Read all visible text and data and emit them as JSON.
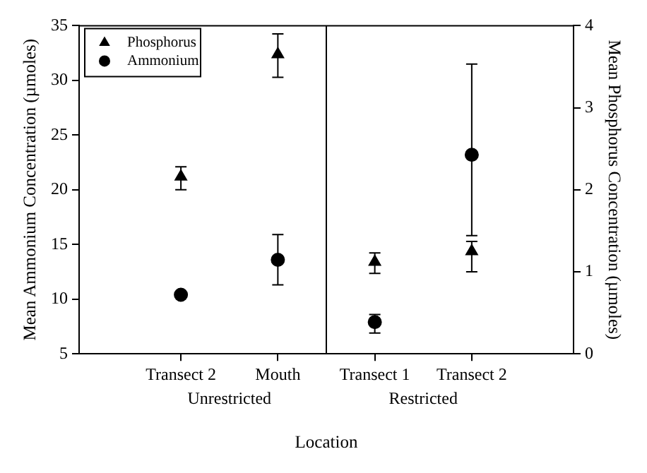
{
  "chart_data": {
    "type": "scatter",
    "categories": [
      "Transect 2",
      "Mouth",
      "Transect 1",
      "Transect 2"
    ],
    "xlabel": "Location",
    "ylabel": "Mean Ammonium Concentration (µmoles)",
    "y2label": "Mean Phosphorus Concentration (µmoles)",
    "annotations": [
      "Unrestricted",
      "Restricted"
    ],
    "series": [
      {
        "name": "Phosphorus",
        "color": "#000000",
        "marker": "triangle",
        "axis": "y2",
        "values": [
          2.16,
          3.65,
          1.12,
          1.25
        ],
        "errors": [
          [
            2.0,
            2.28
          ],
          [
            3.37,
            3.9
          ],
          [
            0.98,
            1.23
          ],
          [
            1.0,
            1.37
          ]
        ]
      },
      {
        "name": "Ammonium",
        "color": "#000000",
        "marker": "circle",
        "axis": "y",
        "values": [
          10.4,
          13.6,
          7.9,
          23.2
        ],
        "errors": [
          null,
          [
            11.3,
            15.9
          ],
          [
            6.9,
            8.6
          ],
          [
            15.8,
            31.5
          ]
        ]
      }
    ],
    "ylim": [
      5,
      35
    ],
    "yticks": [
      5,
      10,
      15,
      20,
      25,
      30,
      35
    ],
    "y2lim": [
      0,
      4
    ],
    "y2ticks": [
      0,
      1,
      2,
      3,
      4
    ],
    "legend": "top left",
    "grid": false
  }
}
